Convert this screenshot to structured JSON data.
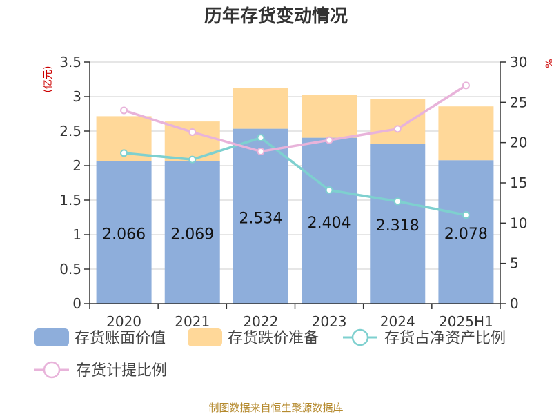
{
  "chart_data": {
    "type": "bar",
    "title": "历年存货变动情况",
    "categories": [
      "2020",
      "2021",
      "2022",
      "2023",
      "2024",
      "2025H1"
    ],
    "left_axis": {
      "unit": "(亿元)",
      "range": [
        0,
        3.5
      ],
      "ticks": [
        "0",
        "0.5",
        "1",
        "1.5",
        "2",
        "2.5",
        "3",
        "3.5"
      ]
    },
    "right_axis": {
      "unit": "%",
      "range": [
        0,
        30
      ],
      "ticks": [
        "0",
        "5",
        "10",
        "15",
        "20",
        "25",
        "30"
      ]
    },
    "series": [
      {
        "name": "存货账面价值",
        "type": "bar-stacked",
        "axis": "left",
        "color": "#8eaedb",
        "values": [
          2.066,
          2.069,
          2.534,
          2.404,
          2.318,
          2.078
        ],
        "labels": [
          "2.066",
          "2.069",
          "2.534",
          "2.404",
          "2.318",
          "2.078"
        ]
      },
      {
        "name": "存货跌价准备",
        "type": "bar-stacked",
        "axis": "left",
        "color": "#ffd899",
        "values": [
          0.65,
          0.57,
          0.59,
          0.62,
          0.65,
          0.78
        ]
      },
      {
        "name": "存货占净资产比例",
        "type": "line",
        "axis": "right",
        "color": "#7ed0cf",
        "values": [
          18.7,
          17.9,
          20.6,
          14.1,
          12.7,
          11.0
        ]
      },
      {
        "name": "存货计提比例",
        "type": "line",
        "axis": "right",
        "color": "#e8b3da",
        "values": [
          24.0,
          21.3,
          18.9,
          20.3,
          21.7,
          27.1
        ]
      }
    ],
    "grid": true,
    "legend_position": "bottom"
  },
  "footer": {
    "source": "制图数据来自恒生聚源数据库"
  }
}
